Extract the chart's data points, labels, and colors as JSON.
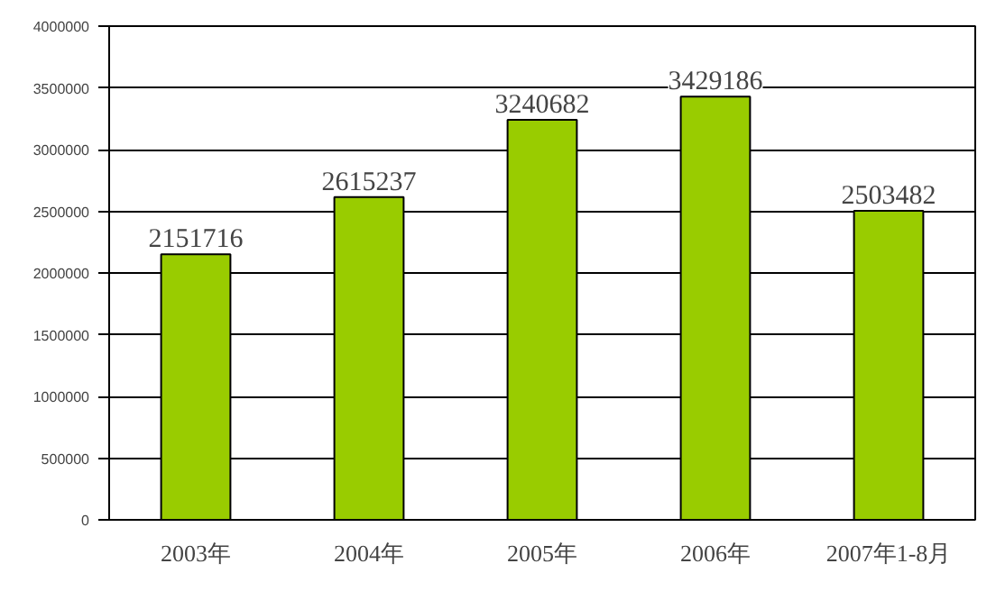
{
  "chart_data": {
    "type": "bar",
    "categories": [
      "2003年",
      "2004年",
      "2005年",
      "2006年",
      "2007年1-8月"
    ],
    "values": [
      2151716,
      2615237,
      3240682,
      3429186,
      2503482
    ],
    "color": "#99cc00",
    "data_labels": true,
    "grid": "y",
    "ylim": [
      0,
      4000000
    ],
    "yticks": [
      0,
      500000,
      1000000,
      1500000,
      2000000,
      2500000,
      3000000,
      3500000,
      4000000
    ]
  }
}
